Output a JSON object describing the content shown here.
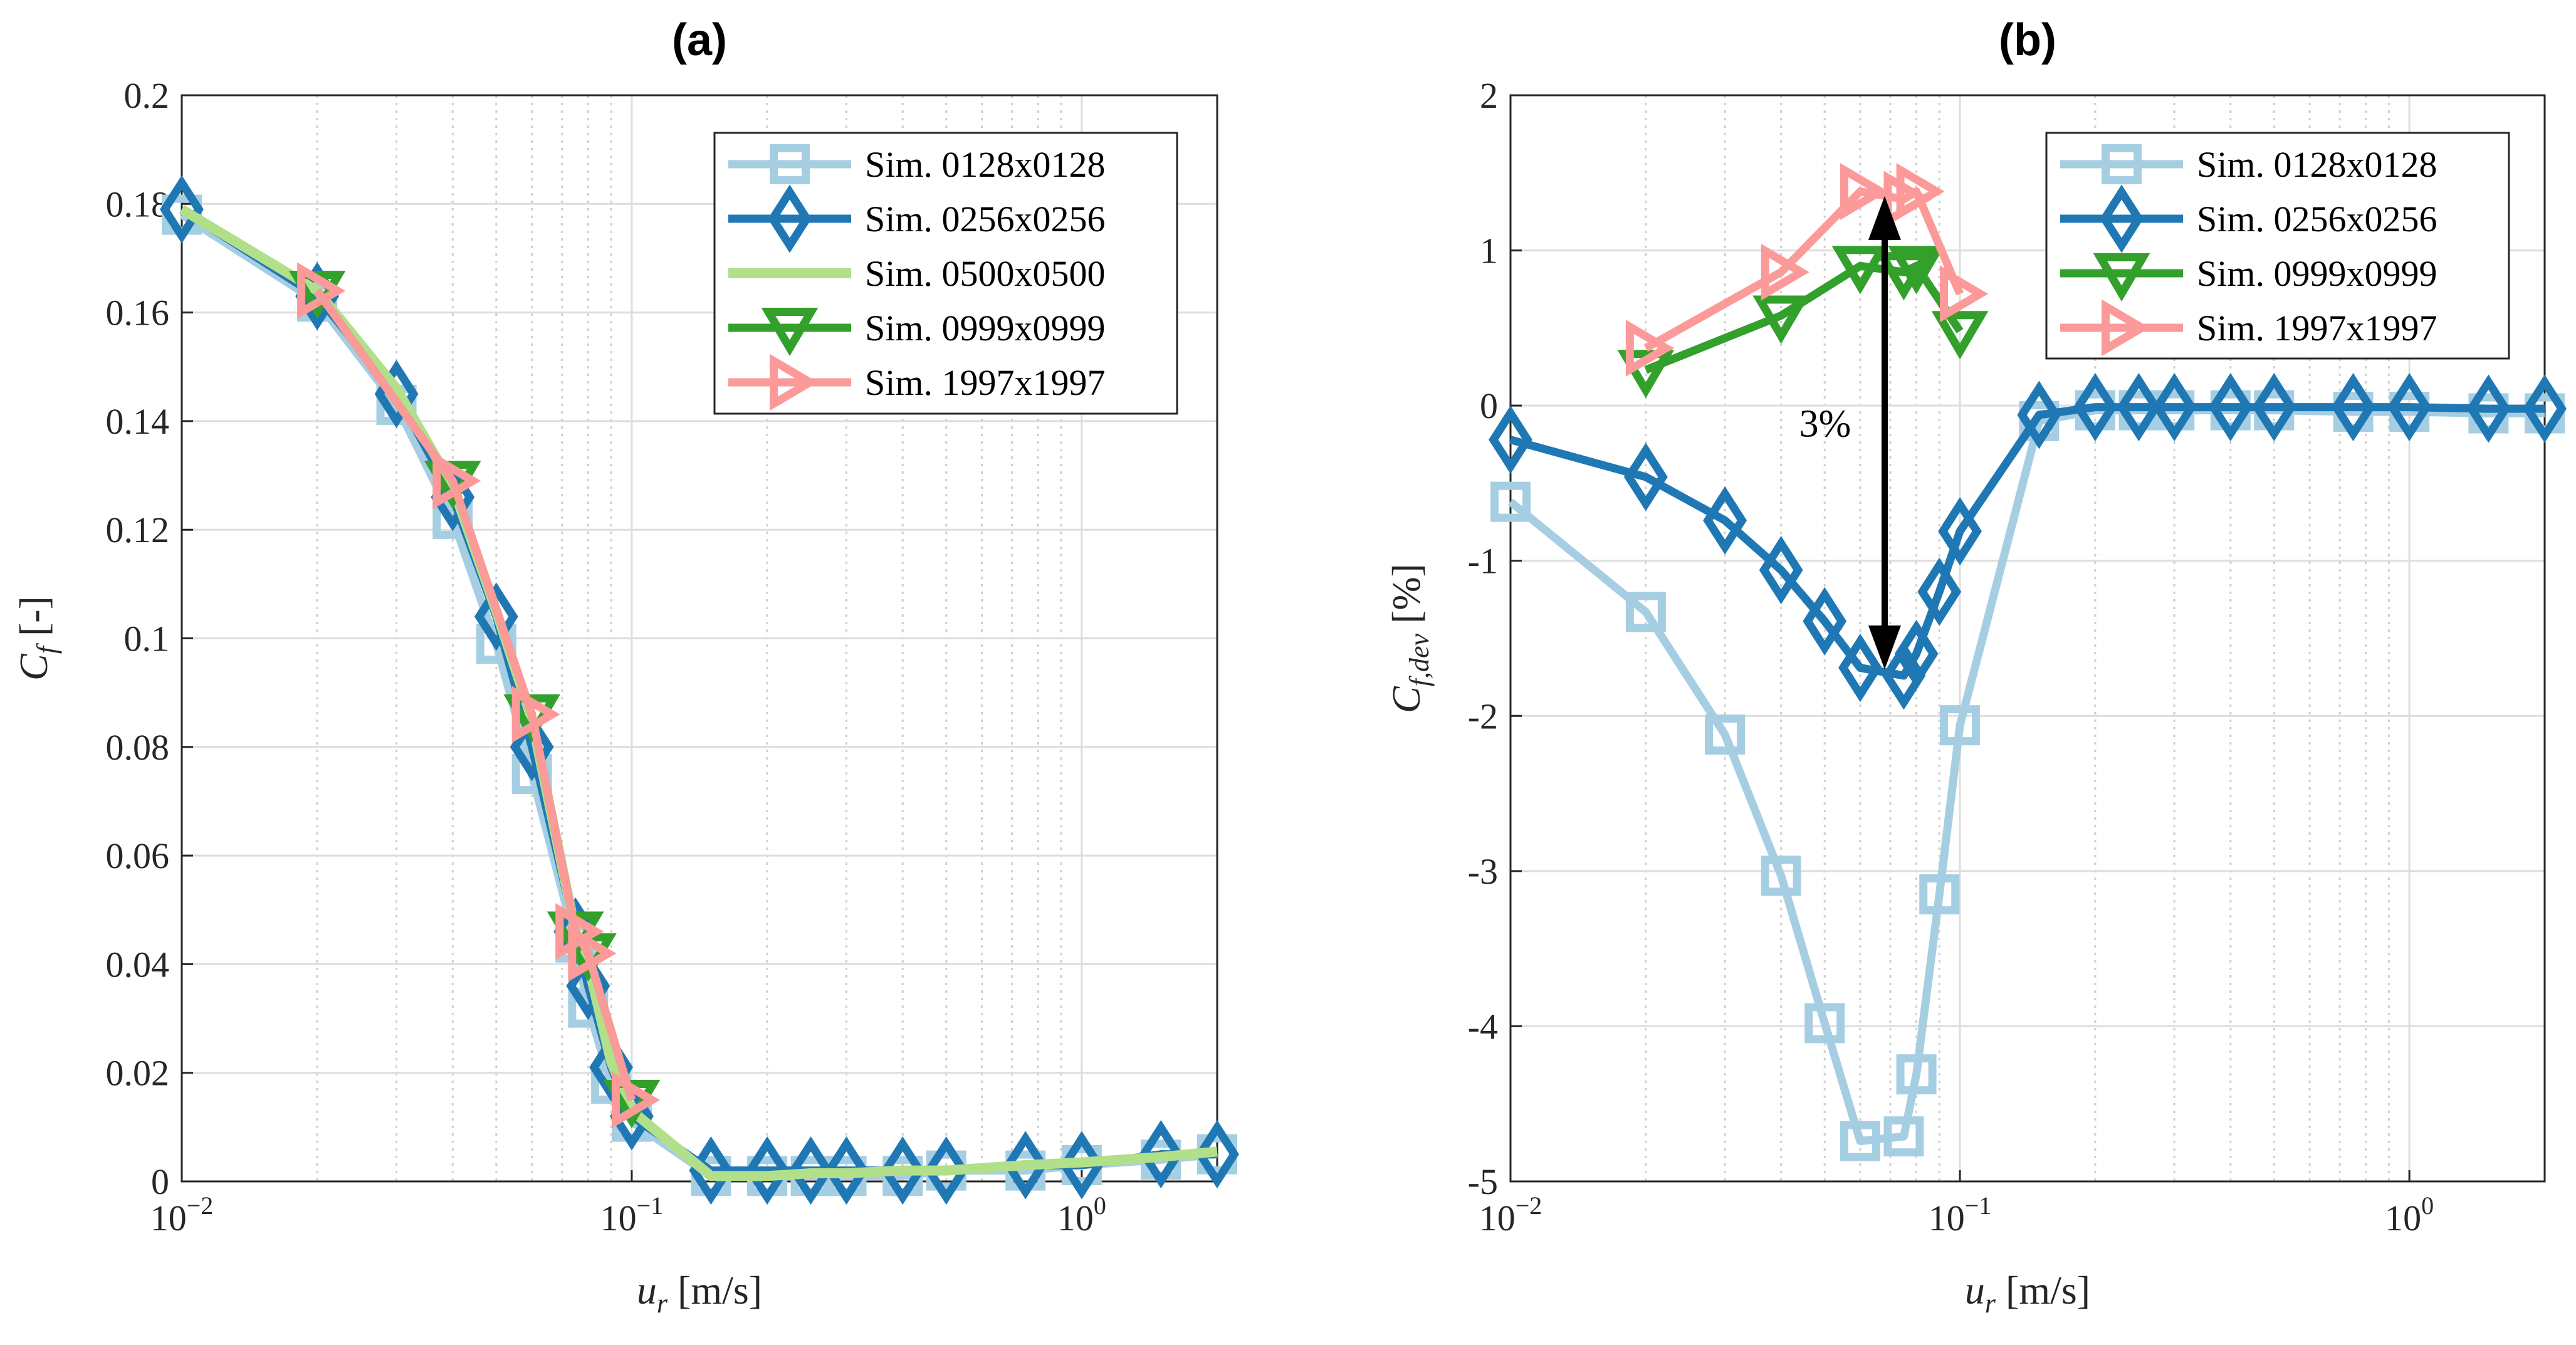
{
  "chart_data": [
    {
      "type": "line",
      "title": "(a)",
      "xlabel_var": "u",
      "xlabel_sub": "r",
      "xlabel_unit": "[m/s]",
      "ylabel_var": "C",
      "ylabel_sub": "f",
      "ylabel_unit": "[-]",
      "xscale": "log",
      "xlim": [
        0.01,
        2
      ],
      "ylim": [
        0,
        0.2
      ],
      "x_ticks": [
        0.01,
        0.1,
        1
      ],
      "x_tick_base": "10",
      "x_tick_exps": [
        "−2",
        "−1",
        "0"
      ],
      "y_ticks": [
        0,
        0.02,
        0.04,
        0.06,
        0.08,
        0.1,
        0.12,
        0.14,
        0.16,
        0.18,
        0.2
      ],
      "y_tick_labels": [
        "0",
        "0.02",
        "0.04",
        "0.06",
        "0.08",
        "0.1",
        "0.12",
        "0.14",
        "0.16",
        "0.18",
        "0.2"
      ],
      "grid": true,
      "legend_position": "top-right",
      "series": [
        {
          "name": "Sim. 0128x0128",
          "color": "#a6cee3",
          "marker": "square",
          "x": [
            0.01,
            0.02,
            0.03,
            0.04,
            0.05,
            0.06,
            0.075,
            0.08,
            0.09,
            0.1,
            0.15,
            0.2,
            0.25,
            0.3,
            0.4,
            0.5,
            0.75,
            1,
            1.5,
            2
          ],
          "y": [
            0.178,
            0.162,
            0.143,
            0.122,
            0.099,
            0.075,
            0.044,
            0.032,
            0.018,
            0.011,
            0.001,
            0.001,
            0.001,
            0.001,
            0.001,
            0.002,
            0.002,
            0.003,
            0.004,
            0.005
          ]
        },
        {
          "name": "Sim. 0256x0256",
          "color": "#1f78b4",
          "marker": "diamond",
          "x": [
            0.01,
            0.02,
            0.03,
            0.04,
            0.05,
            0.06,
            0.075,
            0.08,
            0.09,
            0.1,
            0.15,
            0.2,
            0.25,
            0.3,
            0.4,
            0.5,
            0.75,
            1,
            1.5,
            2
          ],
          "y": [
            0.179,
            0.163,
            0.145,
            0.126,
            0.104,
            0.08,
            0.046,
            0.036,
            0.021,
            0.012,
            0.002,
            0.002,
            0.002,
            0.002,
            0.002,
            0.002,
            0.003,
            0.003,
            0.005,
            0.005
          ]
        },
        {
          "name": "Sim. 0500x0500",
          "color": "#b2df8a",
          "marker": "none",
          "x": [
            0.01,
            0.02,
            0.03,
            0.04,
            0.05,
            0.06,
            0.075,
            0.08,
            0.09,
            0.1,
            0.15,
            0.2,
            0.25,
            0.3,
            0.4,
            0.5,
            0.75,
            1,
            1.5,
            2
          ],
          "y": [
            0.179,
            0.164,
            0.146,
            0.128,
            0.105,
            0.085,
            0.046,
            0.04,
            0.022,
            0.013,
            0.001,
            0.001,
            0.0015,
            0.0015,
            0.002,
            0.002,
            0.003,
            0.0035,
            0.0045,
            0.0055
          ]
        },
        {
          "name": "Sim. 0999x0999",
          "color": "#33a02c",
          "marker": "triangle-down",
          "x": [
            0.02,
            0.04,
            0.06,
            0.075,
            0.08,
            0.1
          ],
          "y": [
            0.164,
            0.129,
            0.086,
            0.046,
            0.042,
            0.015
          ]
        },
        {
          "name": "Sim. 1997x1997",
          "color": "#fb9a99",
          "marker": "triangle-right",
          "x": [
            0.02,
            0.04,
            0.06,
            0.075,
            0.08,
            0.1
          ],
          "y": [
            0.164,
            0.129,
            0.086,
            0.046,
            0.042,
            0.015
          ]
        }
      ]
    },
    {
      "type": "line",
      "title": "(b)",
      "xlabel_var": "u",
      "xlabel_sub": "r",
      "xlabel_unit": "[m/s]",
      "ylabel_var": "C",
      "ylabel_sub": "f,dev",
      "ylabel_unit": "[%]",
      "xscale": "log",
      "xlim": [
        0.01,
        2
      ],
      "ylim": [
        -5,
        2
      ],
      "x_ticks": [
        0.01,
        0.1,
        1
      ],
      "x_tick_base": "10",
      "x_tick_exps": [
        "−2",
        "−1",
        "0"
      ],
      "y_ticks": [
        -5,
        -4,
        -3,
        -2,
        -1,
        0,
        1,
        2
      ],
      "y_tick_labels": [
        "-5",
        "-4",
        "-3",
        "-2",
        "-1",
        "0",
        "1",
        "2"
      ],
      "grid": true,
      "legend_position": "top-right",
      "annotation": {
        "text": "3%",
        "x": 0.068,
        "y_from": 1.35,
        "y_to": -1.7
      },
      "series": [
        {
          "name": "Sim. 0128x0128",
          "color": "#a6cee3",
          "marker": "square",
          "x": [
            0.01,
            0.02,
            0.03,
            0.04,
            0.05,
            0.06,
            0.075,
            0.08,
            0.09,
            0.1,
            0.15,
            0.2,
            0.25,
            0.3,
            0.4,
            0.5,
            0.75,
            1,
            1.5,
            2
          ],
          "y": [
            -0.62,
            -1.33,
            -2.12,
            -3.03,
            -3.98,
            -4.74,
            -4.71,
            -4.31,
            -3.15,
            -2.06,
            -0.1,
            -0.03,
            -0.03,
            -0.03,
            -0.03,
            -0.03,
            -0.04,
            -0.04,
            -0.05,
            -0.05
          ]
        },
        {
          "name": "Sim. 0256x0256",
          "color": "#1f78b4",
          "marker": "diamond",
          "x": [
            0.01,
            0.02,
            0.03,
            0.04,
            0.05,
            0.06,
            0.075,
            0.08,
            0.09,
            0.1,
            0.15,
            0.2,
            0.25,
            0.3,
            0.4,
            0.5,
            0.75,
            1,
            1.5,
            2
          ],
          "y": [
            -0.22,
            -0.46,
            -0.74,
            -1.06,
            -1.39,
            -1.69,
            -1.74,
            -1.6,
            -1.2,
            -0.81,
            -0.06,
            -0.01,
            -0.01,
            -0.01,
            -0.01,
            -0.01,
            -0.01,
            -0.01,
            -0.02,
            -0.02
          ]
        },
        {
          "name": "Sim. 0999x0999",
          "color": "#33a02c",
          "marker": "triangle-down",
          "x": [
            0.02,
            0.04,
            0.06,
            0.075,
            0.08,
            0.1
          ],
          "y": [
            0.23,
            0.58,
            0.9,
            0.86,
            0.9,
            0.48
          ]
        },
        {
          "name": "Sim. 1997x1997",
          "color": "#fb9a99",
          "marker": "triangle-right",
          "x": [
            0.02,
            0.04,
            0.06,
            0.075,
            0.08,
            0.1
          ],
          "y": [
            0.37,
            0.86,
            1.38,
            1.33,
            1.38,
            0.72
          ]
        }
      ]
    }
  ]
}
